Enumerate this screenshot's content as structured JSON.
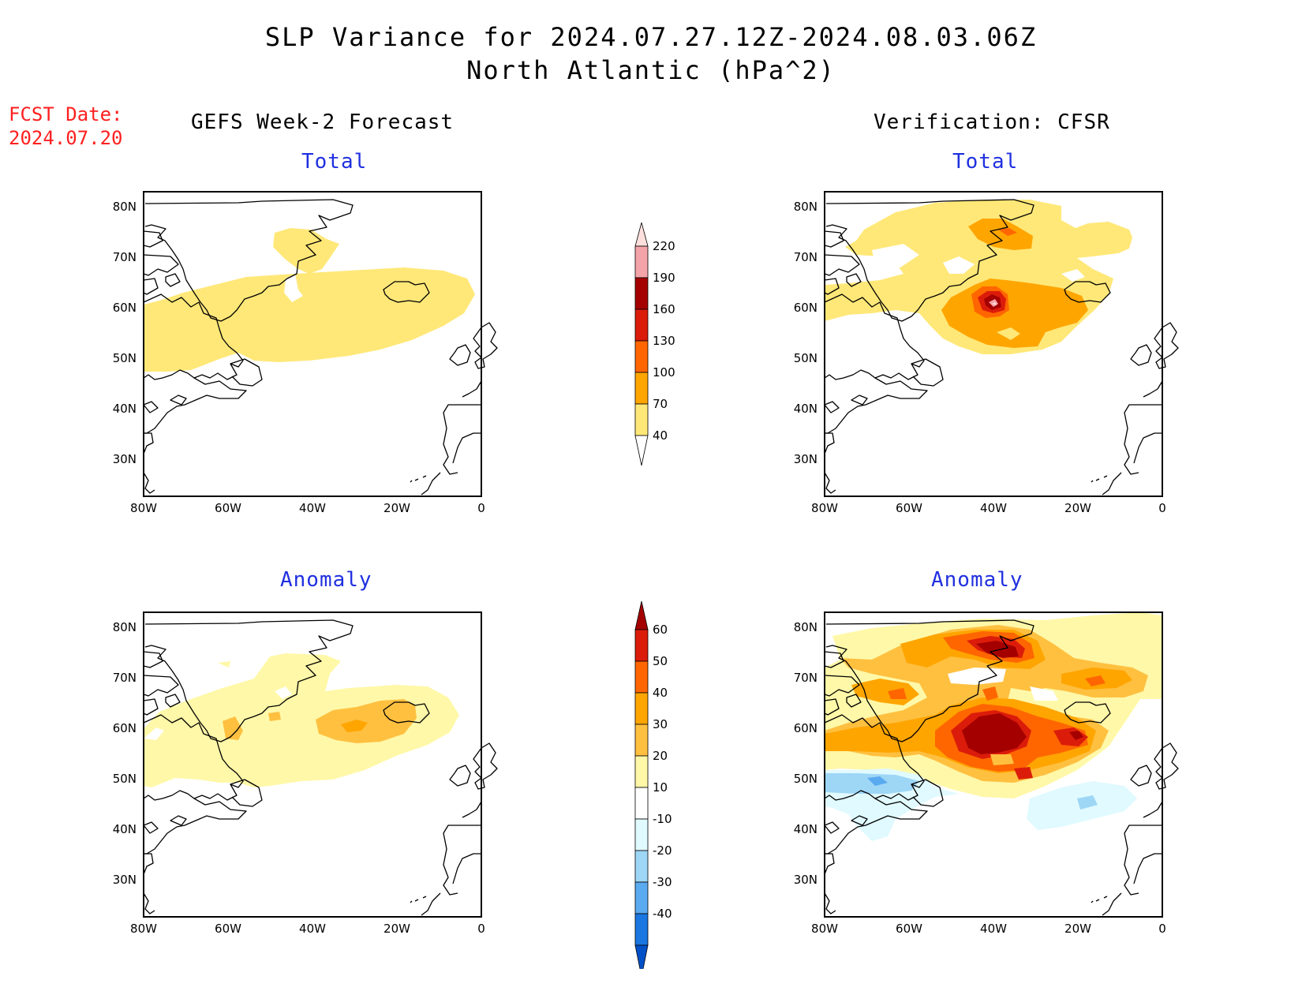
{
  "title_line1": "SLP Variance for 2024.07.27.12Z-2024.08.03.06Z",
  "title_line2": "North Atlantic (hPa^2)",
  "fcst_label": "FCST Date:",
  "fcst_date": "2024.07.20",
  "left_column_title": "GEFS Week-2 Forecast",
  "right_column_title": "Verification: CFSR",
  "panel_titles": {
    "forecast_total": "Total",
    "verification_total": "Total",
    "forecast_anomaly": "Anomaly",
    "verification_anomaly": "Anomaly"
  },
  "map": {
    "lat_labels": [
      "80N",
      "70N",
      "60N",
      "50N",
      "40N",
      "30N"
    ],
    "lon_labels": [
      "80W",
      "60W",
      "40W",
      "20W",
      "0"
    ]
  },
  "total_colorbar": {
    "levels": [
      "220",
      "190",
      "160",
      "130",
      "100",
      "70",
      "40"
    ],
    "colors": [
      "#fde0dd",
      "#f4a3a8",
      "#a50000",
      "#dc1c0a",
      "#ff6600",
      "#ffa500",
      "#ffe878"
    ]
  },
  "anomaly_colorbar": {
    "levels": [
      "60",
      "50",
      "40",
      "30",
      "20",
      "10",
      "-10",
      "-20",
      "-30",
      "-40"
    ],
    "colors": [
      "#a50000",
      "#dc1c0a",
      "#ff6600",
      "#ffa500",
      "#ffc040",
      "#fff8a8",
      "#ffffff",
      "#e0faff",
      "#9ed6f6",
      "#5aaaf0",
      "#1a76e0",
      "#0050c8"
    ]
  }
}
